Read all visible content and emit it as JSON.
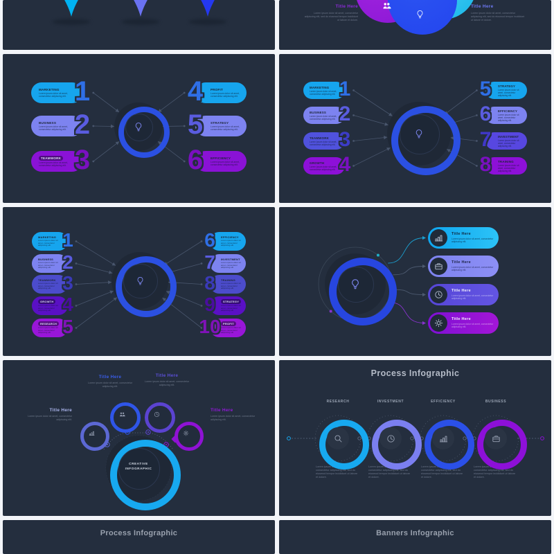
{
  "page_bg": "#f3f5f9",
  "slide_bg": "#242e3e",
  "lorem_s": "Lorem ipsum dolor sit amet, consectetur adipiscing elit.",
  "lorem_m": "Lorem ipsum dolor sit amet, consectetur adipiscing elit, sed do eiusmod tempor incididunt ut labore et dolore.",
  "pins": {
    "colors": [
      "#00b2f2",
      "#6a72f2",
      "#2438f0"
    ]
  },
  "venn": {
    "left_title": "Title Here",
    "left_color": "#8b2ad8",
    "right_title": "Title Here",
    "right_color": "#6d78f2",
    "circle_colors": [
      "#17b6ea",
      "#8a16d4",
      "#2445ee"
    ],
    "icons": [
      "people-icon",
      "lightbulb-icon"
    ]
  },
  "list6": {
    "items": [
      {
        "n": "1",
        "label": "MARKETING",
        "c": "#16a5ee",
        "nc": "#2f6fe6"
      },
      {
        "n": "2",
        "label": "BUSINESS",
        "c": "#7d83f0",
        "nc": "#5a5ce0"
      },
      {
        "n": "3",
        "label": "TEAMWORK",
        "c": "#8a12d6",
        "nc": "#7a10c0",
        "chip": true
      },
      {
        "n": "4",
        "label": "PROFIT",
        "c": "#16a5ee",
        "nc": "#2f6fe6"
      },
      {
        "n": "5",
        "label": "STRATEGY",
        "c": "#7d83f0",
        "nc": "#5a5ce0"
      },
      {
        "n": "6",
        "label": "EFFICIENCY",
        "c": "#8a12d6",
        "nc": "#7a10c0"
      }
    ]
  },
  "list8": {
    "items": [
      {
        "n": "1",
        "label": "MARKETING",
        "c": "#16a5ee",
        "nc": "#2f6fe6"
      },
      {
        "n": "2",
        "label": "BUSINESS",
        "c": "#7d83f0",
        "nc": "#5a5ce0"
      },
      {
        "n": "3",
        "label": "TEAMWORK",
        "c": "#5052dd",
        "nc": "#3c3cc8"
      },
      {
        "n": "4",
        "label": "GROWTH",
        "c": "#8d10d8",
        "nc": "#7a10c0"
      },
      {
        "n": "5",
        "label": "STRATEGY",
        "c": "#16a5ee",
        "nc": "#2f6fe6"
      },
      {
        "n": "6",
        "label": "EFFICIENCY",
        "c": "#7d83f0",
        "nc": "#5a5ce0"
      },
      {
        "n": "7",
        "label": "INVESTMENT",
        "c": "#5747e0",
        "nc": "#4038c8"
      },
      {
        "n": "8",
        "label": "TRAINING",
        "c": "#8d10d8",
        "nc": "#7a10c0"
      }
    ]
  },
  "list10": {
    "items": [
      {
        "n": "1",
        "label": "MARKETING",
        "c": "#16a5ee",
        "nc": "#2f6fe6"
      },
      {
        "n": "2",
        "label": "BUSINESS",
        "c": "#7d83f0",
        "nc": "#5a5ce0"
      },
      {
        "n": "3",
        "label": "TEAMWORK",
        "c": "#4c4ccc",
        "nc": "#3a3ab8"
      },
      {
        "n": "4",
        "label": "GROWTH",
        "c": "#5a10c4",
        "nc": "#4a0da0",
        "chip": true
      },
      {
        "n": "5",
        "label": "RESEARCH",
        "c": "#9916d8",
        "nc": "#8012b8",
        "chip": true
      },
      {
        "n": "6",
        "label": "EFFICIENCY",
        "c": "#16a5ee",
        "nc": "#2f6fe6"
      },
      {
        "n": "7",
        "label": "INVESTMENT",
        "c": "#7d83f0",
        "nc": "#5a5ce0"
      },
      {
        "n": "8",
        "label": "TRAINING",
        "c": "#4c4ccc",
        "nc": "#3a3ab8"
      },
      {
        "n": "9",
        "label": "STRATEGY",
        "c": "#5a10c4",
        "nc": "#4a0da0",
        "chip": true
      },
      {
        "n": "10",
        "label": "PROFIT",
        "c": "#9916d8",
        "nc": "#8012b8",
        "chip": true
      }
    ]
  },
  "options4": {
    "items": [
      {
        "title": "Title Here",
        "icon": "chart-icon",
        "c1": "#0fa5ee",
        "c2": "#2cc3f7",
        "tc": "#102840",
        "lc": "rgba(10,30,55,0.75)"
      },
      {
        "title": "Title Here",
        "icon": "briefcase-icon",
        "c1": "#7d83f0",
        "c2": "#8d8ff5",
        "tc": "#1c2344",
        "lc": "rgba(15,20,60,0.7)"
      },
      {
        "title": "Title Here",
        "icon": "clock-icon",
        "c1": "#5646d8",
        "c2": "#6355e2",
        "tc": "#f2f2fa",
        "lc": "rgba(240,240,255,0.55)"
      },
      {
        "title": "Title Here",
        "icon": "gear-icon",
        "c1": "#7e10d4",
        "c2": "#a316d6",
        "tc": "#f5eefc",
        "lc": "rgba(245,238,252,0.55)"
      }
    ]
  },
  "creative": {
    "center_top": "CREATIVE",
    "center_bottom": "INFOGRAPHIC",
    "center_color": "#17a9f0",
    "items": [
      {
        "title": "Title Here",
        "tc": "#aab4ec",
        "c": "#5c68d4",
        "icon": "chart-icon"
      },
      {
        "title": "Title Here",
        "tc": "#3b5de8",
        "c": "#2f55e8",
        "icon": "people-icon"
      },
      {
        "title": "Title Here",
        "tc": "#5b4fd8",
        "c": "#5b43d0",
        "icon": "clock-icon"
      },
      {
        "title": "Title Here",
        "tc": "#9018d8",
        "c": "#8f12d4",
        "icon": "gear-icon"
      }
    ]
  },
  "process": {
    "title": "Process Infographic",
    "steps": [
      {
        "label": "RESEARCH",
        "c": "#17a9f0",
        "icon": "search-icon"
      },
      {
        "label": "INVESTMENT",
        "c": "#7b7ff0",
        "icon": "clock-icon"
      },
      {
        "label": "EFFICIENCY",
        "c": "#2b50e8",
        "icon": "chart-icon"
      },
      {
        "label": "BUSINESS",
        "c": "#8d10d8",
        "icon": "briefcase-icon"
      }
    ]
  },
  "bottom_left": {
    "title": "Process Infographic"
  },
  "bottom_right": {
    "title": "Banners Infographic"
  }
}
